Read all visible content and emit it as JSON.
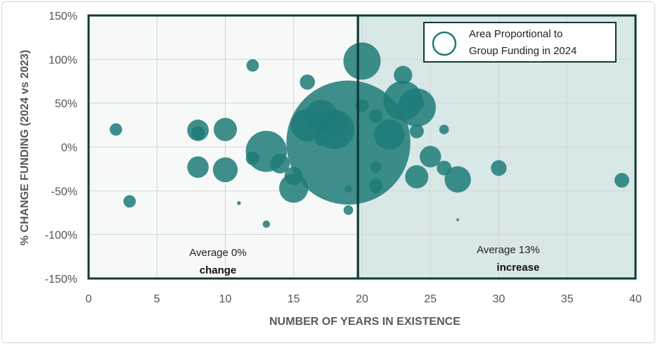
{
  "chart_data": {
    "type": "scatter",
    "subtype": "bubble",
    "title": "",
    "xlabel": "NUMBER OF YEARS IN EXISTENCE",
    "ylabel": "% CHANGE FUNDING (2024 vs 2023)",
    "xlim": [
      0,
      40
    ],
    "ylim": [
      -150,
      150
    ],
    "xticks": [
      0,
      5,
      10,
      15,
      20,
      25,
      30,
      35,
      40
    ],
    "xtick_labels": [
      "0",
      "5",
      "10",
      "15",
      "20",
      "25",
      "30",
      "35",
      "40"
    ],
    "yticks": [
      150,
      100,
      50,
      0,
      -50,
      -100,
      -150
    ],
    "ytick_labels": [
      "150%",
      "100%",
      "50%",
      "0%",
      "-50%",
      "-100%",
      "-150%"
    ],
    "grid": true,
    "divider_x": 19.7,
    "regions": [
      {
        "name": "left",
        "x_range": [
          0,
          19.7
        ],
        "label_line1": "Average 0%",
        "label_line2": "change",
        "color": "#f6f9f8"
      },
      {
        "name": "right",
        "x_range": [
          19.7,
          40
        ],
        "label_line1": "Average 13%",
        "label_line2": "increase",
        "color": "#d7e8e7"
      }
    ],
    "legend": {
      "text_line1": "Area Proportional to",
      "text_line2": "Group Funding in 2024",
      "position": "top-right"
    },
    "bubble_color": "#1e7b78",
    "bubble_opacity": 0.85,
    "size_unit": "relative funding (area)",
    "points": [
      {
        "x": 19,
        "y": 5,
        "size": 100
      },
      {
        "x": 20,
        "y": 98,
        "size": 9
      },
      {
        "x": 24,
        "y": 45,
        "size": 9.5
      },
      {
        "x": 23,
        "y": 53,
        "size": 10
      },
      {
        "x": 13,
        "y": -5,
        "size": 11
      },
      {
        "x": 18,
        "y": 20,
        "size": 10
      },
      {
        "x": 17,
        "y": 35,
        "size": 7
      },
      {
        "x": 16,
        "y": 25,
        "size": 7
      },
      {
        "x": 18,
        "y": 28,
        "size": 4
      },
      {
        "x": 22,
        "y": 14,
        "size": 6
      },
      {
        "x": 27,
        "y": -37,
        "size": 4.5
      },
      {
        "x": 15,
        "y": -47,
        "size": 5.5
      },
      {
        "x": 24,
        "y": -34,
        "size": 3.5
      },
      {
        "x": 10,
        "y": -26,
        "size": 4
      },
      {
        "x": 10,
        "y": 20,
        "size": 3.5
      },
      {
        "x": 8,
        "y": 19,
        "size": 3
      },
      {
        "x": 8,
        "y": -23,
        "size": 3
      },
      {
        "x": 25,
        "y": -11,
        "size": 3
      },
      {
        "x": 14,
        "y": -19,
        "size": 2.5
      },
      {
        "x": 15,
        "y": -33,
        "size": 2.2
      },
      {
        "x": 23,
        "y": 82,
        "size": 2.2
      },
      {
        "x": 16,
        "y": 74,
        "size": 1.5
      },
      {
        "x": 12,
        "y": 93,
        "size": 1
      },
      {
        "x": 2,
        "y": 20,
        "size": 1
      },
      {
        "x": 3,
        "y": -62,
        "size": 1
      },
      {
        "x": 8,
        "y": 16,
        "size": 1.2
      },
      {
        "x": 12,
        "y": -13,
        "size": 1.2
      },
      {
        "x": 20,
        "y": 47,
        "size": 1.2
      },
      {
        "x": 21,
        "y": 35,
        "size": 1.2
      },
      {
        "x": 24,
        "y": 18,
        "size": 1.3
      },
      {
        "x": 24,
        "y": 50,
        "size": 1.5
      },
      {
        "x": 26,
        "y": -24,
        "size": 1.4
      },
      {
        "x": 30,
        "y": -24,
        "size": 1.6
      },
      {
        "x": 39,
        "y": -38,
        "size": 1.4
      },
      {
        "x": 21,
        "y": -44,
        "size": 1.2
      },
      {
        "x": 21,
        "y": -23,
        "size": 0.8
      },
      {
        "x": 21,
        "y": -50,
        "size": 0.25
      },
      {
        "x": 17,
        "y": 8,
        "size": 1
      },
      {
        "x": 19,
        "y": -72,
        "size": 0.6
      },
      {
        "x": 19,
        "y": -48,
        "size": 0.35
      },
      {
        "x": 26,
        "y": 20,
        "size": 0.6
      },
      {
        "x": 13,
        "y": -88,
        "size": 0.35
      },
      {
        "x": 11,
        "y": -64,
        "size": 0.1
      },
      {
        "x": 27,
        "y": -83,
        "size": 0.05
      }
    ]
  }
}
